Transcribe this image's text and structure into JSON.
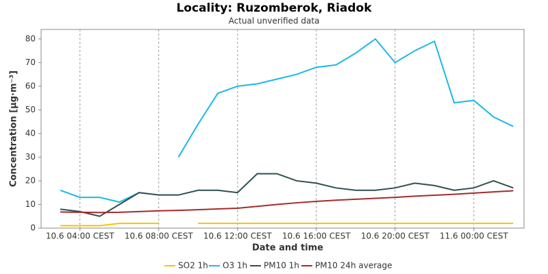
{
  "chart_data": {
    "type": "line",
    "title": "Locality: Ruzomberok, Riadok",
    "subtitle": "Actual unverified data",
    "x_label": "Date and time",
    "y_label": "Concentration [µg·m⁻³]",
    "categories": [
      null,
      "10.6 04:00 CEST",
      null,
      null,
      null,
      "10.6 08:00 CEST",
      null,
      null,
      null,
      "10.6 12:00 CEST",
      null,
      null,
      null,
      "10.6 16:00 CEST",
      null,
      null,
      null,
      "10.6 20:00 CEST",
      null,
      null,
      null,
      "11.6 00:00 CEST",
      null,
      null
    ],
    "series": [
      {
        "name": "SO2 1h",
        "color": "#f5c400",
        "values": [
          1,
          1,
          1,
          2,
          2,
          2,
          null,
          2,
          2,
          2,
          2,
          2,
          2,
          2,
          2,
          2,
          2,
          2,
          2,
          2,
          2,
          2,
          2,
          2
        ]
      },
      {
        "name": "O3 1h",
        "color": "#1ab8e8",
        "values": [
          16,
          13,
          13,
          11,
          15,
          null,
          30,
          44,
          57,
          60,
          61,
          63,
          65,
          68,
          69,
          74,
          80,
          70,
          75,
          79,
          53,
          54,
          47,
          43
        ]
      },
      {
        "name": "PM10 1h",
        "color": "#2f4f4f",
        "values": [
          8,
          7,
          5,
          10,
          15,
          14,
          14,
          16,
          16,
          15,
          23,
          23,
          20,
          19,
          17,
          16,
          16,
          17,
          19,
          18,
          16,
          17,
          20,
          17
        ]
      },
      {
        "name": "PM10 24h average",
        "color": "#a52a2a",
        "values": [
          6.8,
          6.7,
          6.6,
          6.7,
          7.0,
          7.3,
          7.5,
          7.8,
          8.1,
          8.4,
          9.2,
          10.0,
          10.7,
          11.3,
          11.8,
          12.2,
          12.6,
          13.0,
          13.5,
          13.9,
          14.3,
          14.8,
          15.3,
          15.8
        ]
      }
    ],
    "ylim": [
      0,
      84
    ],
    "yticks": [
      0,
      10,
      20,
      30,
      40,
      50,
      60,
      70,
      80
    ],
    "grid": true
  }
}
